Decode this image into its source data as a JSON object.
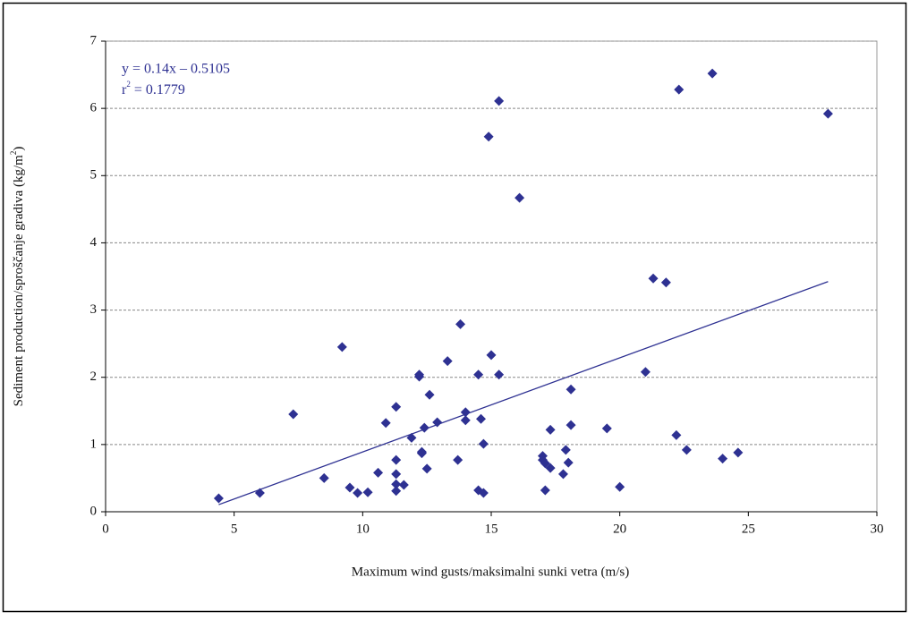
{
  "chart_data": {
    "type": "scatter",
    "x_label": "Maximum wind gusts/maksimalni sunki vetra (m/s)",
    "y_label": [
      "Sediment production/sproščanje gradiva (kg/m",
      "2",
      ")"
    ],
    "equation": "y = 0.14x – 0.5105",
    "r2_label": [
      "r",
      "2",
      " = 0.1779"
    ],
    "trendline": {
      "slope": 0.14,
      "intercept": -0.5105
    },
    "color": "#2e3192",
    "x": [
      4.4,
      6.0,
      7.3,
      8.5,
      9.2,
      9.5,
      9.8,
      10.2,
      10.6,
      10.9,
      11.3,
      11.3,
      11.3,
      11.3,
      11.3,
      11.6,
      11.9,
      12.2,
      12.2,
      12.3,
      12.3,
      12.4,
      12.5,
      12.6,
      12.9,
      13.3,
      13.7,
      13.8,
      14.0,
      14.0,
      14.5,
      14.5,
      14.6,
      14.7,
      14.7,
      14.9,
      15.0,
      15.3,
      15.3,
      16.1,
      17.0,
      17.0,
      17.1,
      17.1,
      17.3,
      17.3,
      17.8,
      17.9,
      18.0,
      18.1,
      18.1,
      19.5,
      20.0,
      21.0,
      21.3,
      21.8,
      22.2,
      22.3,
      22.6,
      23.6,
      24.0,
      24.6,
      28.1
    ],
    "values": [
      0.2,
      0.28,
      1.45,
      0.5,
      2.45,
      0.36,
      0.28,
      0.29,
      0.58,
      1.32,
      1.56,
      0.77,
      0.56,
      0.41,
      0.31,
      0.4,
      1.1,
      2.04,
      2.01,
      0.89,
      0.87,
      1.25,
      0.64,
      1.74,
      1.33,
      2.24,
      0.77,
      2.79,
      1.48,
      1.36,
      2.04,
      0.32,
      1.38,
      0.28,
      1.01,
      5.58,
      2.33,
      6.11,
      2.04,
      4.67,
      0.83,
      0.77,
      0.72,
      0.32,
      1.22,
      0.65,
      0.56,
      0.92,
      0.73,
      1.82,
      1.29,
      1.24,
      0.37,
      2.08,
      3.47,
      3.41,
      1.14,
      6.28,
      0.92,
      6.52,
      0.79,
      0.88,
      5.92
    ],
    "xlim": [
      0,
      30
    ],
    "xticks": [
      0,
      5,
      10,
      15,
      20,
      25,
      30
    ],
    "ylim": [
      0,
      7
    ],
    "yticks": [
      0,
      1,
      2,
      3,
      4,
      5,
      6,
      7
    ],
    "grid": true
  }
}
